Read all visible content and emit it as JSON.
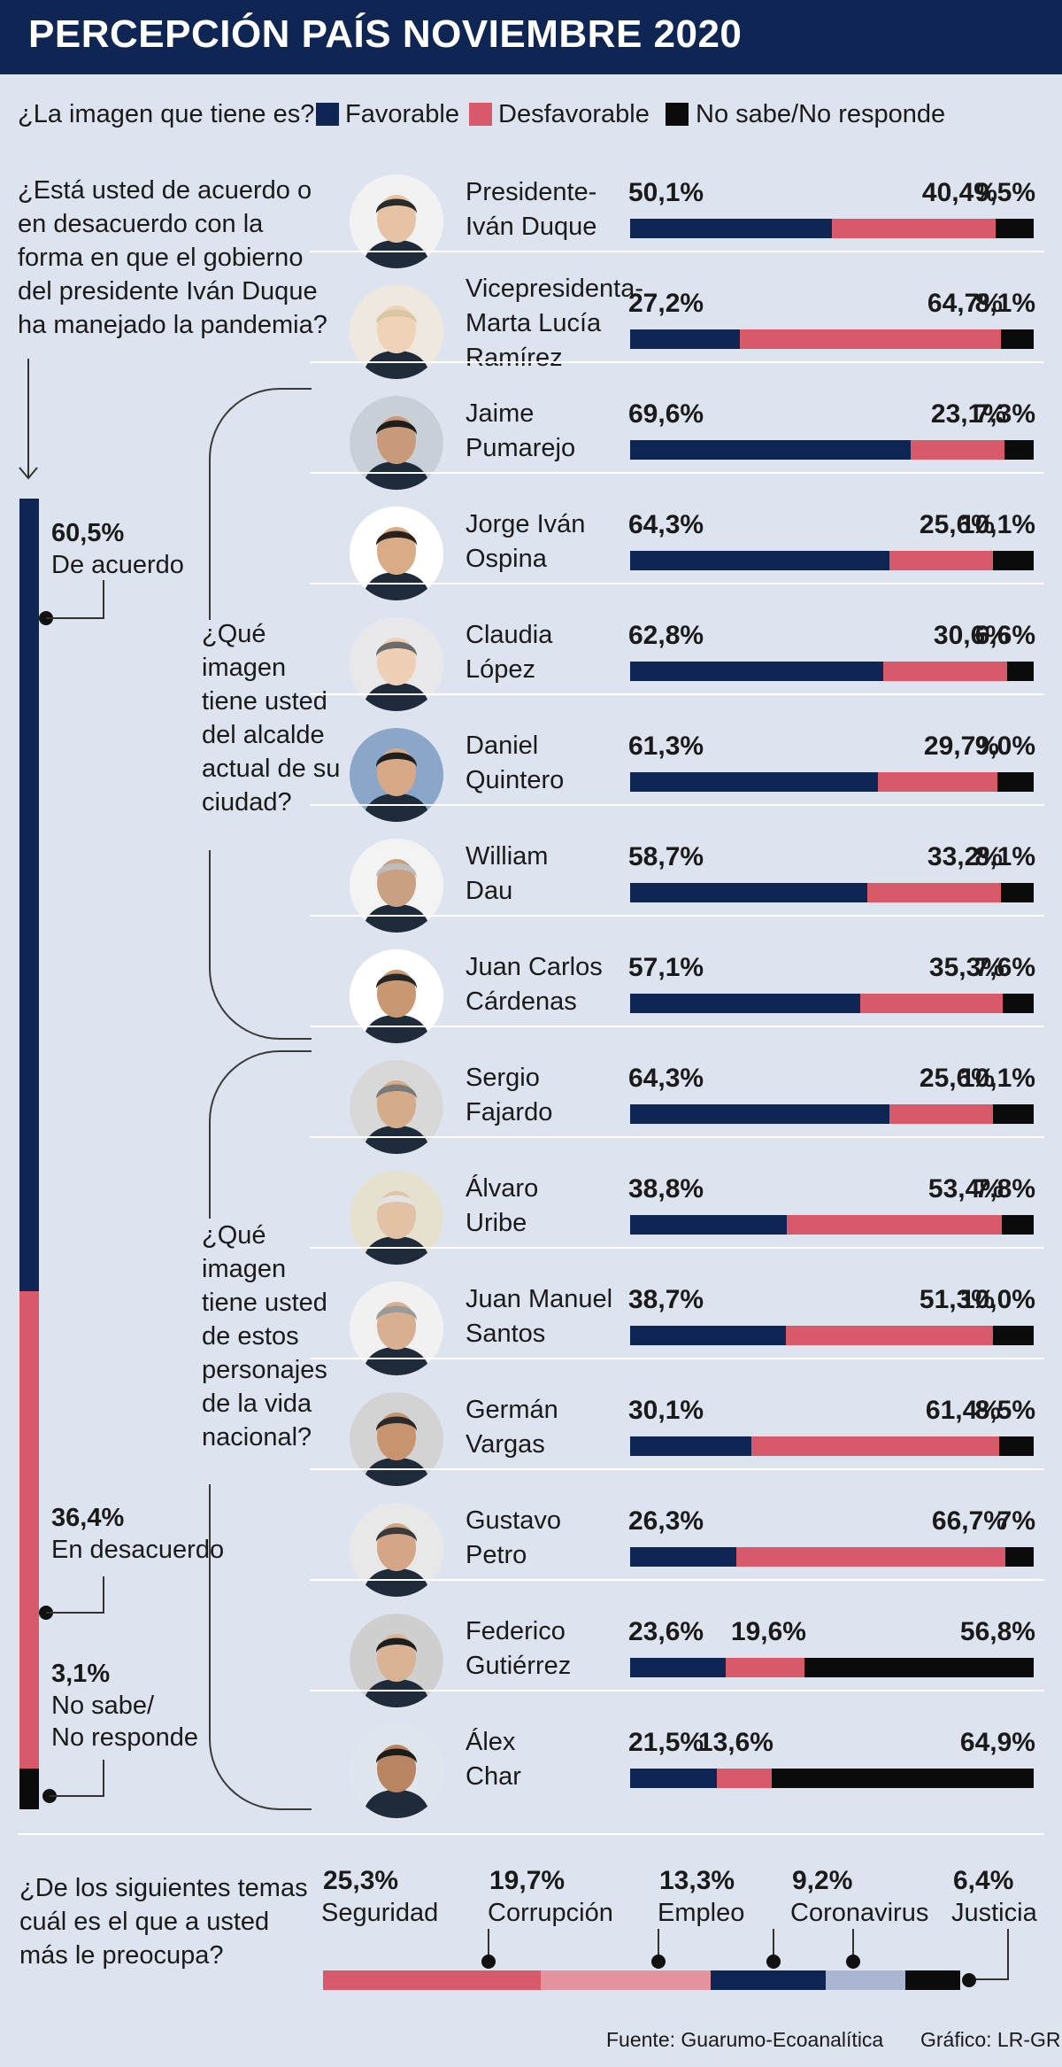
{
  "title": "PERCEPCIÓN PAÍS NOVIEMBRE 2020",
  "legend": {
    "question": "¿La imagen que tiene es?",
    "items": [
      {
        "label": "Favorable",
        "color": "#0f2553"
      },
      {
        "label": "Desfavorable",
        "color": "#d85a6a"
      },
      {
        "label": "No sabe/No responde",
        "color": "#0b0b0b"
      }
    ]
  },
  "q_gobierno": "¿Está usted de acuerdo o en desacuerdo con la forma en que el gobierno del presidente Iván Duque ha manejado la pandemia?",
  "q_alcaldes": "¿Qué imagen tiene usted del alcalde actual de su ciudad?",
  "q_nacionales": "¿Qué imagen tiene usted de estos personajes de la vida nacional?",
  "q_temas": "¿De los siguientes temas cuál es el que a usted más le preocupa?",
  "gobierno": [
    {
      "pct": "60,5%",
      "label": "De acuerdo",
      "value": 60.5,
      "color": "#0f2553"
    },
    {
      "pct": "36,4%",
      "label": "En desacuerdo",
      "value": 36.4,
      "color": "#d85a6a"
    },
    {
      "pct": "3,1%",
      "label": "No sabe/\nNo responde",
      "value": 3.1,
      "color": "#0b0b0b"
    }
  ],
  "chart_data": {
    "type": "bar",
    "stacked": true,
    "orientation": "horizontal",
    "series_names": [
      "Favorable",
      "Desfavorable",
      "No sabe/No responde"
    ],
    "rows": [
      {
        "name": "Presidente-\nIván Duque",
        "values": [
          50.1,
          40.4,
          9.5
        ],
        "labels": [
          "50,1%",
          "40,4%",
          "9,5%"
        ]
      },
      {
        "name": "Vicepresidenta-\nMarta Lucía\nRamírez",
        "values": [
          27.2,
          64.7,
          8.1
        ],
        "labels": [
          "27,2%",
          "64,7%",
          "8,1%"
        ]
      },
      {
        "name": "Jaime\nPumarejo",
        "values": [
          69.6,
          23.1,
          7.3
        ],
        "labels": [
          "69,6%",
          "23,1%",
          "7,3%"
        ]
      },
      {
        "name": "Jorge Iván\n Ospina",
        "values": [
          64.3,
          25.6,
          10.1
        ],
        "labels": [
          "64,3%",
          "25,6%",
          "10,1%"
        ]
      },
      {
        "name": "Claudia\nLópez",
        "values": [
          62.8,
          30.6,
          6.6
        ],
        "labels": [
          "62,8%",
          "30,6%",
          "6,6%"
        ]
      },
      {
        "name": "Daniel\nQuintero",
        "values": [
          61.3,
          29.7,
          9.0
        ],
        "labels": [
          "61,3%",
          "29,7%",
          "9,0%"
        ]
      },
      {
        "name": "William\nDau",
        "values": [
          58.7,
          33.2,
          8.1
        ],
        "labels": [
          "58,7%",
          "33,2%",
          "8,1%"
        ]
      },
      {
        "name": "Juan Carlos\nCárdenas",
        "values": [
          57.1,
          35.3,
          7.6
        ],
        "labels": [
          "57,1%",
          "35,3%",
          "7,6%"
        ]
      },
      {
        "name": "Sergio\nFajardo",
        "values": [
          64.3,
          25.6,
          10.1
        ],
        "labels": [
          "64,3%",
          "25,6%",
          "10,1%"
        ]
      },
      {
        "name": "Álvaro\nUribe",
        "values": [
          38.8,
          53.4,
          7.8
        ],
        "labels": [
          "38,8%",
          "53,4%",
          "7,8%"
        ]
      },
      {
        "name": "Juan Manuel\nSantos",
        "values": [
          38.7,
          51.3,
          10.0
        ],
        "labels": [
          "38,7%",
          "51,3%",
          "10,0%"
        ]
      },
      {
        "name": "Germán\nVargas",
        "values": [
          30.1,
          61.4,
          8.5
        ],
        "labels": [
          "30,1%",
          "61,4%",
          "8,5%"
        ]
      },
      {
        "name": "Gustavo\nPetro",
        "values": [
          26.3,
          66.7,
          7.0
        ],
        "labels": [
          "26,3%",
          "66,7%",
          "7%"
        ]
      },
      {
        "name": "Federico\nGutiérrez",
        "values": [
          23.6,
          19.6,
          56.8
        ],
        "labels": [
          "23,6%",
          "19,6%",
          "56,8%"
        ]
      },
      {
        "name": "Álex\nChar",
        "values": [
          21.5,
          13.6,
          64.9
        ],
        "labels": [
          "21,5%",
          "13,6%",
          "64,9%"
        ]
      }
    ],
    "temas": [
      {
        "label": "Seguridad",
        "pct": "25,3%",
        "value": 25.3,
        "color": "#d85a6a"
      },
      {
        "label": "Corrupción",
        "pct": "19,7%",
        "value": 19.7,
        "color": "#e2939e"
      },
      {
        "label": "Empleo",
        "pct": "13,3%",
        "value": 13.3,
        "color": "#0f2553"
      },
      {
        "label": "Coronavirus",
        "pct": "9,2%",
        "value": 9.2,
        "color": "#a9b5d1"
      },
      {
        "label": "Justicia",
        "pct": "6,4%",
        "value": 6.4,
        "color": "#0b0b0b"
      }
    ]
  },
  "footer": {
    "source": "Fuente: Guarumo-Ecoanalítica",
    "credit": "Gráfico: LR-GR"
  }
}
